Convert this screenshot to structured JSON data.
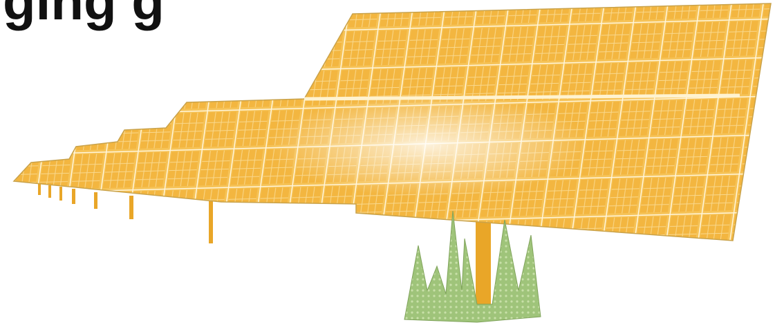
{
  "heading": "ging g"
}
